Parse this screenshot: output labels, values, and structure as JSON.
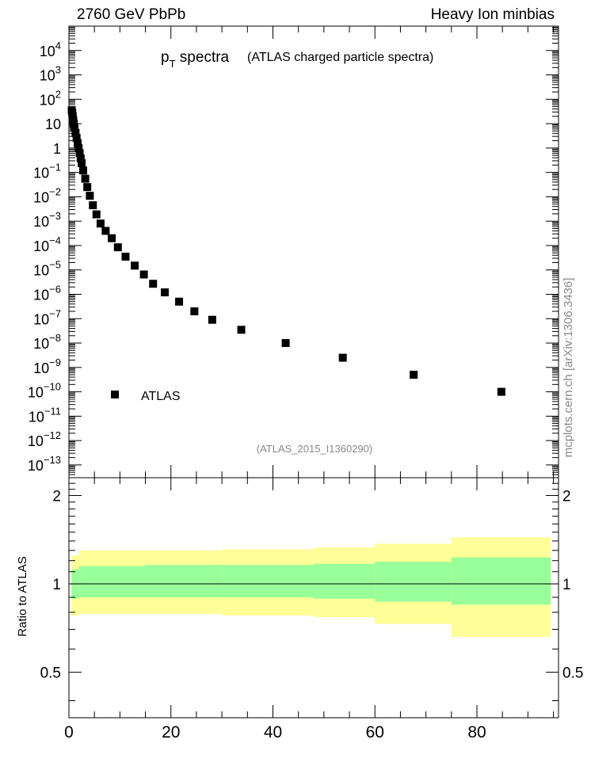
{
  "header": {
    "left": "2760 GeV PbPb",
    "right": "Heavy Ion minbias"
  },
  "main_plot": {
    "title_main": "p",
    "title_sub": "T",
    "title_rest": " spectra",
    "title_paren": "(ATLAS charged particle spectra)",
    "analysis_id": "(ATLAS_2015_I1360290)",
    "legend_label": "ATLAS"
  },
  "ratio_plot": {
    "ylabel": "Ratio to ATLAS"
  },
  "side_label": "mcplots.cern.ch [arXiv:1306.3436]",
  "colors": {
    "marker": "#000000",
    "band_inner": "#99ff99",
    "band_outer": "#ffff99"
  },
  "chart_data": [
    {
      "type": "scatter",
      "scale": "log-y",
      "xlim": [
        0,
        96
      ],
      "ylim": [
        3e-14,
        100000.0
      ],
      "y_tick_labels": [
        "10^-13",
        "10^-12",
        "10^-11",
        "10^-10",
        "10^-9",
        "10^-8",
        "10^-7",
        "10^-6",
        "10^-5",
        "10^-4",
        "10^-3",
        "10^-2",
        "10^-1",
        "1",
        "10",
        "10^2",
        "10^3",
        "10^4"
      ],
      "series": [
        {
          "name": "ATLAS",
          "x": [
            0.55,
            0.65,
            0.75,
            0.85,
            0.95,
            1.1,
            1.3,
            1.5,
            1.7,
            1.9,
            2.1,
            2.3,
            2.5,
            2.8,
            3.2,
            3.6,
            4.1,
            4.7,
            5.4,
            6.2,
            7.2,
            8.4,
            9.6,
            11.1,
            12.9,
            14.7,
            16.5,
            18.8,
            21.6,
            24.6,
            28.1,
            33.8,
            42.5,
            53.7,
            67.6,
            84.8
          ],
          "y": [
            35,
            28,
            20,
            14,
            10,
            6.8,
            4.2,
            2.6,
            1.6,
            1.0,
            0.62,
            0.38,
            0.24,
            0.12,
            0.055,
            0.025,
            0.011,
            0.0045,
            0.0019,
            0.0008,
            0.0004,
            0.0002,
            8.5e-05,
            3.5e-05,
            1.5e-05,
            6.5e-06,
            2.7e-06,
            1.2e-06,
            5e-07,
            2e-07,
            9e-08,
            3.5e-08,
            1e-08,
            2.5e-09,
            5e-10,
            1e-10
          ]
        }
      ]
    },
    {
      "type": "area",
      "xlim": [
        0,
        96
      ],
      "ylim": [
        0.35,
        2.3
      ],
      "y_ticks": [
        0.5,
        1,
        2
      ],
      "x_ticks": [
        0,
        20,
        40,
        60,
        80
      ],
      "reference_line": 1,
      "bands": [
        {
          "x0": 0.5,
          "x1": 2,
          "inner": [
            0.89,
            1.12
          ],
          "outer": [
            0.78,
            1.25
          ]
        },
        {
          "x0": 2,
          "x1": 15,
          "inner": [
            0.9,
            1.15
          ],
          "outer": [
            0.79,
            1.3
          ]
        },
        {
          "x0": 15,
          "x1": 30,
          "inner": [
            0.9,
            1.16
          ],
          "outer": [
            0.79,
            1.3
          ]
        },
        {
          "x0": 30,
          "x1": 48,
          "inner": [
            0.9,
            1.16
          ],
          "outer": [
            0.78,
            1.31
          ]
        },
        {
          "x0": 48,
          "x1": 60,
          "inner": [
            0.89,
            1.17
          ],
          "outer": [
            0.77,
            1.33
          ]
        },
        {
          "x0": 60,
          "x1": 75,
          "inner": [
            0.87,
            1.19
          ],
          "outer": [
            0.73,
            1.37
          ]
        },
        {
          "x0": 75,
          "x1": 94.5,
          "inner": [
            0.85,
            1.23
          ],
          "outer": [
            0.66,
            1.44
          ]
        }
      ]
    }
  ]
}
